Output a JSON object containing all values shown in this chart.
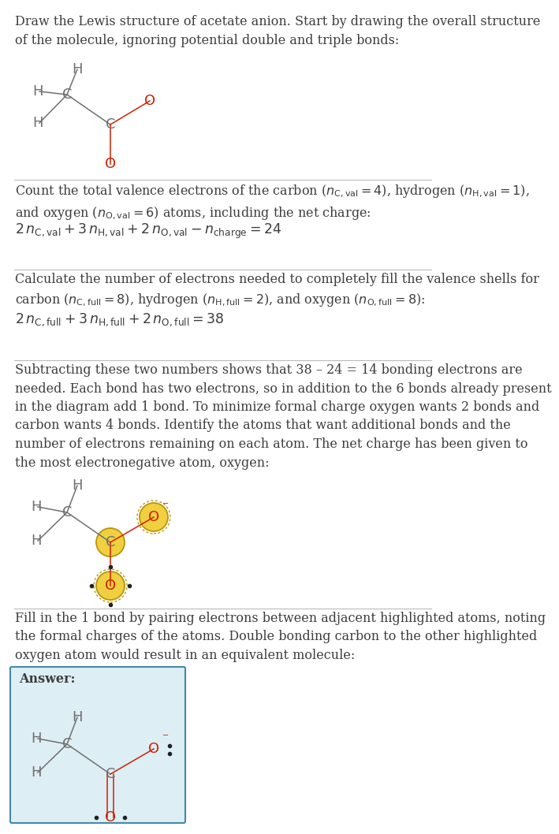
{
  "title_text": "Draw the Lewis structure of acetate anion. Start by drawing the overall structure\nof the molecule, ignoring potential double and triple bonds:",
  "s1_line1": "Count the total valence electrons of the carbon (",
  "s1_line2": "and oxygen (",
  "s2_line1": "Calculate the number of electrons needed to completely fill the valence shells for",
  "s2_line2": "carbon (",
  "s3_text": "Subtracting these two numbers shows that 38 – 24 = 14 bonding electrons are\nneeded. Each bond has two electrons, so in addition to the 6 bonds already present\nin the diagram add 1 bond. To minimize formal charge oxygen wants 2 bonds and\ncarbon wants 4 bonds. Identify the atoms that want additional bonds and the\nnumber of electrons remaining on each atom. The net charge has been given to\nthe most electronegative atom, oxygen:",
  "s4_text": "Fill in the 1 bond by pairing electrons between adjacent highlighted atoms, noting\nthe formal charges of the atoms. Double bonding carbon to the other highlighted\noxygen atom would result in an equivalent molecule:",
  "answer_label": "Answer:",
  "bg_color": "#ffffff",
  "text_color": "#3d3d3d",
  "red_color": "#cc2200",
  "highlight_yellow": "#f0d040",
  "highlight_border": "#b8960a",
  "answer_bg": "#deeef5",
  "answer_border": "#4488aa",
  "bond_color": "#707070",
  "atom_color": "#555555",
  "div_color": "#bbbbbb",
  "font_size": 11.5
}
